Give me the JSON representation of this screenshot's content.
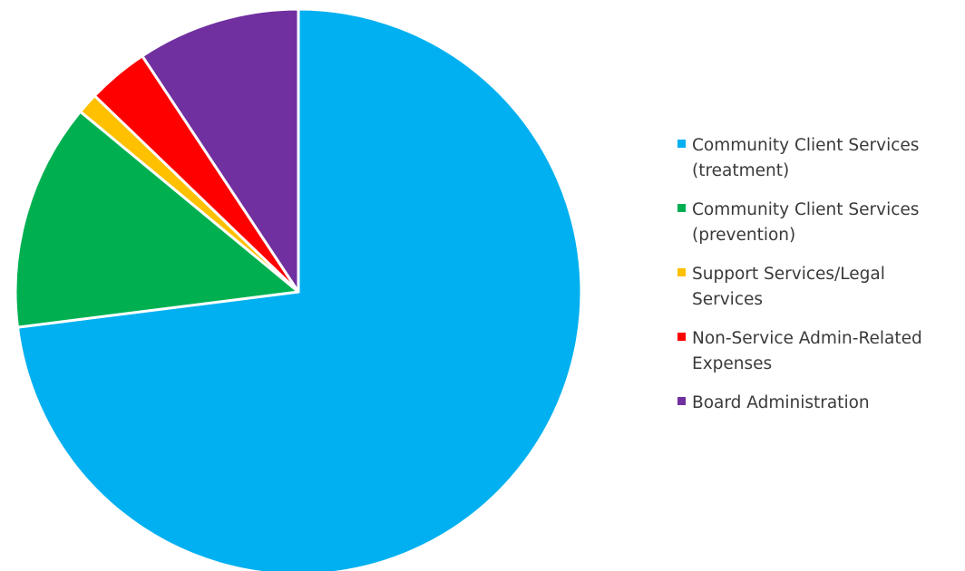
{
  "chart_data": {
    "type": "pie",
    "start_angle_deg": 0,
    "direction": "clockwise",
    "categories": [
      "Community Client Services (treatment)",
      "Community Client Services (prevention)",
      "Support Services/Legal Services",
      "Non-Service Admin-Related Expenses",
      "Board Administration"
    ],
    "legend_lines": [
      "Community Client Services\n(treatment)",
      "Community Client Services\n(prevention)",
      "Support Services/Legal\nServices",
      "Non-Service Admin-Related\nExpenses",
      "Board Administration"
    ],
    "values": [
      73,
      13,
      1.2,
      3.5,
      9.3
    ],
    "value_unit": "percent",
    "colors": [
      "#00b0f0",
      "#00b050",
      "#ffc000",
      "#ff0000",
      "#7030a0"
    ],
    "legend": "right"
  }
}
